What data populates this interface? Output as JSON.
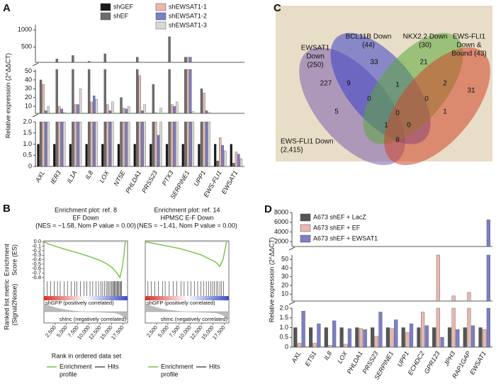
{
  "chart_data": [
    {
      "panel": "A",
      "type": "broken_bar",
      "y_label": "Relative expression (2^ΔΔCT)",
      "categories": [
        "AXL",
        "IER3",
        "IL1A",
        "IL8",
        "LOX",
        "NT5E",
        "PHLDA1",
        "PRSS23",
        "PTX3",
        "SERPINE1",
        "UPP1",
        "EWS-FLI1",
        "EWSAT1"
      ],
      "series": [
        {
          "name": "shGEF",
          "color": "#1a1a1a",
          "values": [
            1,
            1,
            1,
            1,
            1,
            1,
            1,
            1,
            1,
            1,
            1,
            1,
            1
          ]
        },
        {
          "name": "shEF",
          "color": "#6d6d6d",
          "values": [
            40,
            150,
            250,
            80,
            300,
            20,
            200,
            35,
            800,
            200,
            30,
            0.25,
            0.15
          ]
        },
        {
          "name": "shEWSAT1-1",
          "color": "#e8b7b0",
          "values": [
            35,
            10,
            12,
            15,
            12,
            8,
            45,
            2.8,
            12,
            200,
            25,
            1.3,
            0.65
          ]
        },
        {
          "name": "shEWSAT1-2",
          "color": "#7b7fc4",
          "values": [
            5,
            7,
            12,
            22,
            5,
            7,
            5,
            1.4,
            10,
            200,
            5,
            0.95,
            0.55
          ]
        },
        {
          "name": "shEWSAT1-3",
          "color": "#d9d9d9",
          "values": [
            10,
            3,
            30,
            18,
            15,
            10,
            12,
            8,
            15,
            4,
            3,
            0.7,
            0.35
          ]
        }
      ],
      "y_segments": [
        {
          "ylim": [
            0,
            2
          ],
          "yticks": [
            0,
            0.5,
            {
              "value": 1,
              "label": "1.0"
            },
            1.5,
            {
              "value": 2,
              "label": "2.0"
            }
          ]
        },
        {
          "ylim": [
            2,
            52
          ],
          "yticks": [
            10,
            20,
            30,
            40,
            50
          ]
        },
        {
          "ylim": [
            50,
            1150
          ],
          "yticks": [
            500,
            1000
          ]
        }
      ]
    },
    {
      "panel": "B",
      "type": "enrichment",
      "y_label": [
        "Enrichment",
        "Score (ES)"
      ],
      "metric_label": [
        "Ranked list metric",
        "(Signal2Noise)"
      ],
      "x_label": "Rank in ordered data set",
      "legend": [
        {
          "name": [
            "Enrichment",
            "profile"
          ],
          "color": "#7ac143"
        },
        {
          "name": [
            "Hits"
          ],
          "color": "#555555"
        }
      ],
      "ylim": [
        -0.85,
        0.02
      ],
      "yticks": [
        {
          "value": 0,
          "label": "0.0"
        },
        -0.1,
        -0.2,
        -0.3,
        -0.4,
        -0.5,
        -0.6,
        -0.7,
        -0.8
      ],
      "xlim": [
        0,
        18500
      ],
      "xticks": [
        {
          "value": 2500,
          "label": "2,500"
        },
        {
          "value": 5000,
          "label": "5,000"
        },
        {
          "value": 7500,
          "label": "7,500"
        },
        {
          "value": 10000,
          "label": "10,000"
        },
        {
          "value": 12500,
          "label": "12,500"
        },
        {
          "value": 15000,
          "label": "15,000"
        },
        {
          "value": 17500,
          "label": "17,500"
        }
      ],
      "positive_label": "shGFP (positively correlated)",
      "negative_label": "shInc (negatively correlated)",
      "plots": [
        {
          "title": [
            "Enrichment plot: ref. 8",
            "EF Down",
            "(NES = −1.58, Nom P value = 0.00)"
          ],
          "curve": {
            "x": [
              0,
              1000,
              2500,
              5000,
              7500,
              10000,
              12500,
              14000,
              15000,
              16000,
              16800,
              17300,
              17700,
              18000
            ],
            "values": [
              0,
              -0.05,
              -0.1,
              -0.18,
              -0.25,
              -0.33,
              -0.42,
              -0.5,
              -0.57,
              -0.68,
              -0.8,
              -0.6,
              -0.3,
              0
            ]
          },
          "hits": [
            700,
            1500,
            2300,
            3000,
            3600,
            4500,
            5200,
            6000,
            6800,
            7300,
            8100,
            8900,
            9500,
            10200,
            10800,
            11500,
            12100,
            12600,
            13000,
            13400,
            13800,
            14100,
            14400,
            14700,
            15000,
            15200,
            15400,
            15600,
            15800,
            16000,
            16200,
            16400,
            16600,
            16800,
            17000,
            17200
          ]
        },
        {
          "title": [
            "Enrichment plot: ref. 14",
            "HPMSC E-F Down",
            "(NES = −1.41, Nom P value = 0.00)"
          ],
          "curve": {
            "x": [
              0,
              2500,
              5000,
              7500,
              10000,
              12500,
              14500,
              15500,
              16500,
              17200,
              17700,
              18000
            ],
            "values": [
              0,
              -0.05,
              -0.1,
              -0.15,
              -0.22,
              -0.3,
              -0.4,
              -0.45,
              -0.55,
              -0.4,
              -0.15,
              0
            ]
          },
          "hits": [
            600,
            1300,
            2100,
            2900,
            3800,
            4400,
            5300,
            6200,
            7000,
            7900,
            8600,
            9400,
            10100,
            10900,
            11600,
            12300,
            12900,
            13500,
            14000,
            14500,
            14900,
            15300,
            15700,
            16100,
            16500,
            16900,
            17300
          ]
        }
      ]
    },
    {
      "panel": "C",
      "type": "venn",
      "sets": [
        {
          "label": [
            "EWSAT1",
            "Down",
            "(250)"
          ],
          "color": "#7c5fb0"
        },
        {
          "label": [
            "BCL11B Down",
            "(44)"
          ],
          "color": "#3b40c8"
        },
        {
          "label": [
            "NKX2.2 Down",
            "(30)"
          ],
          "color": "#5aa83a"
        },
        {
          "label": [
            "EWS-FLI1",
            "Down &",
            "Bound (43)"
          ],
          "color": "#d0452a"
        }
      ],
      "background_label": [
        "EWS-FLI1 Down",
        "(2,415)"
      ],
      "regions": [
        33,
        21,
        227,
        9,
        1,
        2,
        31,
        0,
        0,
        5,
        0,
        1,
        0,
        1,
        8
      ]
    },
    {
      "panel": "D",
      "type": "broken_bar",
      "y_label": "Relative expression (2^ΔΔCT)",
      "categories": [
        "AXL",
        "ETS1",
        "IL8",
        "LOX",
        "PHLDA1",
        "PRSS23",
        "SERPINE1",
        "UPP1",
        "ECHDC2",
        "GPR123",
        "JPH3",
        "RAP1GAP",
        "EWSAT1"
      ],
      "series": [
        {
          "name": "A673 shEF + LacZ",
          "color": "#555555",
          "values": [
            1,
            1,
            1,
            1,
            1,
            1,
            1,
            1,
            1,
            1,
            1,
            1,
            1
          ]
        },
        {
          "name": "A673 shEF + EF",
          "color": "#e8b7b0",
          "values": [
            0.2,
            0.2,
            0.1,
            0.15,
            0.95,
            0.55,
            0.95,
            0.75,
            1.8,
            800,
            8,
            12,
            0.9
          ]
        },
        {
          "name": "A673 shEF + EWSAT1",
          "color": "#7b7fc4",
          "values": [
            1.85,
            1.2,
            1.35,
            0.95,
            0.9,
            1.8,
            1.4,
            1.2,
            1.1,
            0.5,
            0.9,
            1.1,
            6500
          ]
        }
      ],
      "y_segments": [
        {
          "ylim": [
            0,
            2
          ],
          "yticks": [
            0,
            0.5,
            {
              "value": 1,
              "label": "1.0"
            },
            1.5,
            {
              "value": 2,
              "label": "2.0"
            }
          ]
        },
        {
          "ylim": [
            2,
            55
          ],
          "yticks": [
            10,
            20,
            30,
            40,
            50
          ]
        },
        {
          "ylim": [
            1000,
            8000
          ],
          "yticks": [
            2000,
            4000,
            6000,
            8000
          ]
        }
      ]
    }
  ]
}
